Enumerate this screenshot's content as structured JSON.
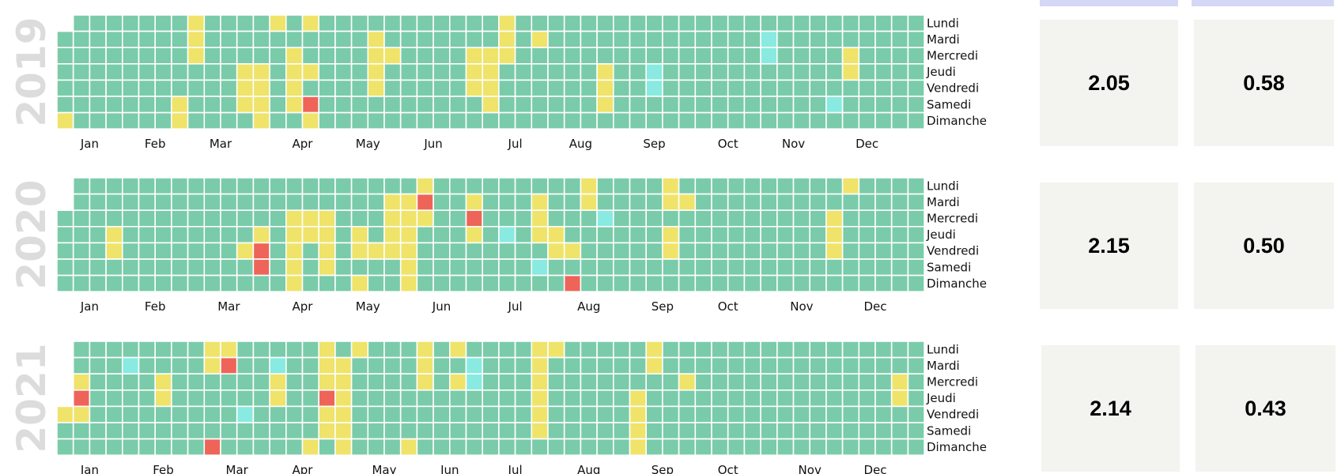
{
  "colors": {
    "default": "#7acbaa",
    "yellow": "#efe36a",
    "red": "#ee6459",
    "cyan": "#88eae0",
    "grid": "#ffffff",
    "year_text": "#dcdcdc",
    "stat_bg": "#f3f3f0",
    "stat_tab": "#d4d8f6"
  },
  "day_labels": [
    "Lundi",
    "Mardi",
    "Mercredi",
    "Jeudi",
    "Vendredi",
    "Samedi",
    "Dimanche"
  ],
  "stats": [
    {
      "year": "2019",
      "left": "2.05",
      "right": "0.58"
    },
    {
      "year": "2020",
      "left": "2.15",
      "right": "0.50"
    },
    {
      "year": "2021",
      "left": "2.14",
      "right": "0.43"
    }
  ],
  "chart_data": [
    {
      "type": "heatmap",
      "title": "2019",
      "first_weekday": 1,
      "last_week": 52,
      "months": [
        {
          "label": "Jan",
          "week": 2
        },
        {
          "label": "Feb",
          "week": 6
        },
        {
          "label": "Mar",
          "week": 10
        },
        {
          "label": "Apr",
          "week": 15
        },
        {
          "label": "May",
          "week": 19
        },
        {
          "label": "Jun",
          "week": 23
        },
        {
          "label": "Jul",
          "week": 28
        },
        {
          "label": "Aug",
          "week": 32
        },
        {
          "label": "Sep",
          "week": 36.5
        },
        {
          "label": "Oct",
          "week": 41
        },
        {
          "label": "Nov",
          "week": 45
        },
        {
          "label": "Dec",
          "week": 49.5
        }
      ],
      "marked": [
        [
          0,
          6,
          "yellow"
        ],
        [
          7,
          5,
          "yellow"
        ],
        [
          7,
          6,
          "yellow"
        ],
        [
          8,
          0,
          "yellow"
        ],
        [
          8,
          1,
          "yellow"
        ],
        [
          8,
          2,
          "yellow"
        ],
        [
          11,
          3,
          "yellow"
        ],
        [
          11,
          4,
          "yellow"
        ],
        [
          11,
          5,
          "yellow"
        ],
        [
          12,
          3,
          "yellow"
        ],
        [
          12,
          4,
          "yellow"
        ],
        [
          12,
          5,
          "yellow"
        ],
        [
          12,
          6,
          "yellow"
        ],
        [
          13,
          0,
          "yellow"
        ],
        [
          14,
          2,
          "yellow"
        ],
        [
          14,
          3,
          "yellow"
        ],
        [
          14,
          4,
          "yellow"
        ],
        [
          14,
          5,
          "yellow"
        ],
        [
          15,
          0,
          "yellow"
        ],
        [
          15,
          3,
          "yellow"
        ],
        [
          15,
          5,
          "red"
        ],
        [
          15,
          6,
          "yellow"
        ],
        [
          19,
          1,
          "yellow"
        ],
        [
          19,
          2,
          "yellow"
        ],
        [
          19,
          3,
          "yellow"
        ],
        [
          19,
          4,
          "yellow"
        ],
        [
          20,
          2,
          "yellow"
        ],
        [
          25,
          2,
          "yellow"
        ],
        [
          25,
          3,
          "yellow"
        ],
        [
          25,
          4,
          "yellow"
        ],
        [
          26,
          2,
          "yellow"
        ],
        [
          26,
          3,
          "yellow"
        ],
        [
          26,
          4,
          "yellow"
        ],
        [
          26,
          5,
          "yellow"
        ],
        [
          27,
          0,
          "yellow"
        ],
        [
          27,
          1,
          "yellow"
        ],
        [
          27,
          2,
          "yellow"
        ],
        [
          29,
          1,
          "yellow"
        ],
        [
          33,
          3,
          "yellow"
        ],
        [
          33,
          4,
          "yellow"
        ],
        [
          33,
          5,
          "yellow"
        ],
        [
          36,
          3,
          "cyan"
        ],
        [
          36,
          4,
          "cyan"
        ],
        [
          43,
          1,
          "cyan"
        ],
        [
          43,
          2,
          "cyan"
        ],
        [
          47,
          5,
          "cyan"
        ],
        [
          48,
          2,
          "yellow"
        ],
        [
          48,
          3,
          "yellow"
        ]
      ]
    },
    {
      "type": "heatmap",
      "title": "2020",
      "first_weekday": 2,
      "last_week": 52,
      "months": [
        {
          "label": "Jan",
          "week": 2
        },
        {
          "label": "Feb",
          "week": 6
        },
        {
          "label": "Mar",
          "week": 10.5
        },
        {
          "label": "Apr",
          "week": 15
        },
        {
          "label": "May",
          "week": 19
        },
        {
          "label": "Jun",
          "week": 23.5
        },
        {
          "label": "Jul",
          "week": 28
        },
        {
          "label": "Aug",
          "week": 32.5
        },
        {
          "label": "Sep",
          "week": 37
        },
        {
          "label": "Oct",
          "week": 41
        },
        {
          "label": "Nov",
          "week": 45.5
        },
        {
          "label": "Dec",
          "week": 50
        }
      ],
      "marked": [
        [
          3,
          3,
          "yellow"
        ],
        [
          3,
          4,
          "yellow"
        ],
        [
          11,
          4,
          "yellow"
        ],
        [
          12,
          3,
          "yellow"
        ],
        [
          12,
          4,
          "red"
        ],
        [
          12,
          5,
          "red"
        ],
        [
          14,
          2,
          "yellow"
        ],
        [
          14,
          3,
          "yellow"
        ],
        [
          14,
          4,
          "yellow"
        ],
        [
          14,
          5,
          "yellow"
        ],
        [
          14,
          6,
          "yellow"
        ],
        [
          15,
          2,
          "yellow"
        ],
        [
          15,
          3,
          "yellow"
        ],
        [
          16,
          2,
          "yellow"
        ],
        [
          16,
          3,
          "yellow"
        ],
        [
          16,
          4,
          "yellow"
        ],
        [
          16,
          5,
          "yellow"
        ],
        [
          18,
          3,
          "yellow"
        ],
        [
          18,
          4,
          "yellow"
        ],
        [
          18,
          6,
          "yellow"
        ],
        [
          19,
          4,
          "yellow"
        ],
        [
          20,
          1,
          "yellow"
        ],
        [
          20,
          2,
          "yellow"
        ],
        [
          20,
          3,
          "yellow"
        ],
        [
          20,
          4,
          "yellow"
        ],
        [
          21,
          1,
          "yellow"
        ],
        [
          21,
          2,
          "yellow"
        ],
        [
          21,
          3,
          "yellow"
        ],
        [
          21,
          4,
          "yellow"
        ],
        [
          21,
          5,
          "yellow"
        ],
        [
          21,
          6,
          "yellow"
        ],
        [
          22,
          0,
          "yellow"
        ],
        [
          22,
          1,
          "red"
        ],
        [
          22,
          2,
          "yellow"
        ],
        [
          25,
          1,
          "yellow"
        ],
        [
          25,
          2,
          "red"
        ],
        [
          25,
          3,
          "yellow"
        ],
        [
          27,
          3,
          "cyan"
        ],
        [
          29,
          1,
          "yellow"
        ],
        [
          29,
          2,
          "yellow"
        ],
        [
          29,
          3,
          "yellow"
        ],
        [
          29,
          5,
          "cyan"
        ],
        [
          30,
          3,
          "yellow"
        ],
        [
          30,
          4,
          "yellow"
        ],
        [
          31,
          4,
          "yellow"
        ],
        [
          31,
          6,
          "red"
        ],
        [
          32,
          0,
          "yellow"
        ],
        [
          32,
          1,
          "yellow"
        ],
        [
          33,
          2,
          "cyan"
        ],
        [
          37,
          0,
          "yellow"
        ],
        [
          37,
          1,
          "yellow"
        ],
        [
          37,
          3,
          "yellow"
        ],
        [
          37,
          4,
          "yellow"
        ],
        [
          38,
          1,
          "yellow"
        ],
        [
          47,
          2,
          "yellow"
        ],
        [
          47,
          3,
          "yellow"
        ],
        [
          47,
          4,
          "yellow"
        ],
        [
          48,
          0,
          "yellow"
        ]
      ]
    },
    {
      "type": "heatmap",
      "title": "2021",
      "first_weekday": 4,
      "last_week": 52,
      "months": [
        {
          "label": "Jan",
          "week": 2
        },
        {
          "label": "Feb",
          "week": 6.5
        },
        {
          "label": "Mar",
          "week": 11
        },
        {
          "label": "Apr",
          "week": 15
        },
        {
          "label": "May",
          "week": 20
        },
        {
          "label": "Jun",
          "week": 24
        },
        {
          "label": "Jul",
          "week": 28
        },
        {
          "label": "Aug",
          "week": 32.5
        },
        {
          "label": "Sep",
          "week": 37
        },
        {
          "label": "Oct",
          "week": 41
        },
        {
          "label": "Nov",
          "week": 46
        },
        {
          "label": "Dec",
          "week": 50
        }
      ],
      "marked": [
        [
          0,
          4,
          "yellow"
        ],
        [
          1,
          2,
          "yellow"
        ],
        [
          1,
          3,
          "red"
        ],
        [
          1,
          4,
          "yellow"
        ],
        [
          4,
          1,
          "cyan"
        ],
        [
          6,
          2,
          "yellow"
        ],
        [
          6,
          3,
          "yellow"
        ],
        [
          9,
          0,
          "yellow"
        ],
        [
          9,
          1,
          "yellow"
        ],
        [
          9,
          6,
          "red"
        ],
        [
          10,
          0,
          "yellow"
        ],
        [
          10,
          1,
          "red"
        ],
        [
          11,
          4,
          "cyan"
        ],
        [
          13,
          1,
          "cyan"
        ],
        [
          13,
          2,
          "yellow"
        ],
        [
          13,
          3,
          "yellow"
        ],
        [
          15,
          6,
          "yellow"
        ],
        [
          16,
          0,
          "yellow"
        ],
        [
          16,
          1,
          "yellow"
        ],
        [
          16,
          2,
          "yellow"
        ],
        [
          16,
          3,
          "red"
        ],
        [
          16,
          4,
          "yellow"
        ],
        [
          16,
          5,
          "yellow"
        ],
        [
          17,
          1,
          "yellow"
        ],
        [
          17,
          2,
          "yellow"
        ],
        [
          17,
          3,
          "yellow"
        ],
        [
          17,
          4,
          "yellow"
        ],
        [
          17,
          5,
          "yellow"
        ],
        [
          17,
          6,
          "yellow"
        ],
        [
          18,
          0,
          "yellow"
        ],
        [
          21,
          6,
          "yellow"
        ],
        [
          22,
          0,
          "yellow"
        ],
        [
          22,
          1,
          "yellow"
        ],
        [
          22,
          2,
          "yellow"
        ],
        [
          24,
          0,
          "yellow"
        ],
        [
          24,
          2,
          "yellow"
        ],
        [
          25,
          1,
          "cyan"
        ],
        [
          25,
          2,
          "cyan"
        ],
        [
          29,
          0,
          "yellow"
        ],
        [
          29,
          1,
          "yellow"
        ],
        [
          29,
          2,
          "yellow"
        ],
        [
          29,
          3,
          "yellow"
        ],
        [
          29,
          4,
          "yellow"
        ],
        [
          29,
          5,
          "yellow"
        ],
        [
          30,
          0,
          "yellow"
        ],
        [
          35,
          3,
          "yellow"
        ],
        [
          35,
          4,
          "yellow"
        ],
        [
          35,
          5,
          "yellow"
        ],
        [
          35,
          6,
          "yellow"
        ],
        [
          36,
          0,
          "yellow"
        ],
        [
          36,
          1,
          "yellow"
        ],
        [
          38,
          2,
          "yellow"
        ],
        [
          51,
          2,
          "yellow"
        ],
        [
          51,
          3,
          "yellow"
        ]
      ]
    }
  ]
}
